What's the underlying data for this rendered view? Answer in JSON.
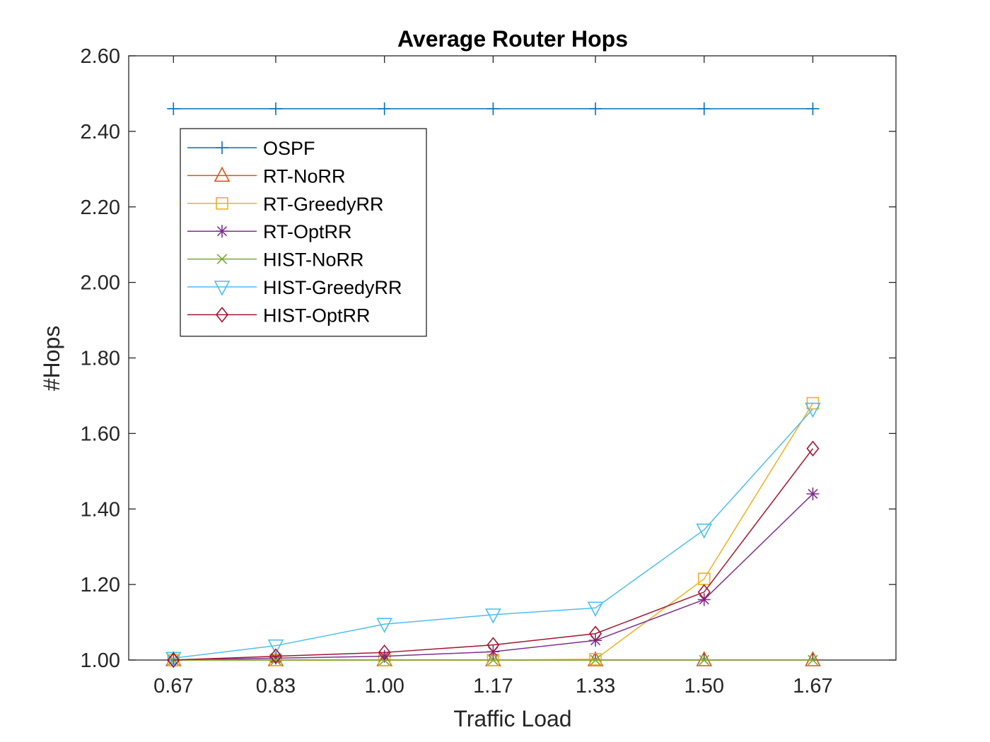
{
  "chart_data": {
    "type": "line",
    "title": "Average Router Hops",
    "xlabel": "Traffic Load",
    "ylabel": "#Hops",
    "x": [
      0.67,
      0.83,
      1.0,
      1.17,
      1.33,
      1.5,
      1.67
    ],
    "x_tick_labels": [
      "0.67",
      "0.83",
      "1.00",
      "1.17",
      "1.33",
      "1.50",
      "1.67"
    ],
    "xlim": [
      0.6,
      1.8
    ],
    "ylim": [
      1.0,
      2.6
    ],
    "y_ticks": [
      1.0,
      1.2,
      1.4,
      1.6,
      1.8,
      2.0,
      2.2,
      2.4,
      2.6
    ],
    "y_tick_labels": [
      "1.00",
      "1.20",
      "1.40",
      "1.60",
      "1.80",
      "2.00",
      "2.20",
      "2.40",
      "2.60"
    ],
    "grid": false,
    "legend_position": "top-left",
    "series": [
      {
        "name": "OSPF",
        "color": "#0072BD",
        "marker": "plus",
        "values": [
          2.46,
          2.46,
          2.46,
          2.46,
          2.46,
          2.46,
          2.46
        ]
      },
      {
        "name": "RT-NoRR",
        "color": "#D95319",
        "marker": "triangle-up",
        "values": [
          1.0,
          1.0,
          1.0,
          1.0,
          1.0,
          1.0,
          1.0
        ]
      },
      {
        "name": "RT-GreedyRR",
        "color": "#EDB120",
        "marker": "square",
        "values": [
          1.0,
          1.0,
          1.0,
          1.0,
          1.002,
          1.215,
          1.68
        ]
      },
      {
        "name": "RT-OptRR",
        "color": "#7E2F8E",
        "marker": "asterisk",
        "values": [
          1.0,
          1.005,
          1.01,
          1.022,
          1.052,
          1.16,
          1.44
        ]
      },
      {
        "name": "HIST-NoRR",
        "color": "#77AC30",
        "marker": "x",
        "values": [
          1.0,
          1.0,
          1.0,
          1.0,
          1.0,
          1.0,
          1.0
        ]
      },
      {
        "name": "HIST-GreedyRR",
        "color": "#4DBEEE",
        "marker": "triangle-down",
        "values": [
          1.005,
          1.038,
          1.095,
          1.12,
          1.138,
          1.345,
          1.665
        ]
      },
      {
        "name": "HIST-OptRR",
        "color": "#A2142F",
        "marker": "diamond",
        "values": [
          1.0,
          1.01,
          1.02,
          1.04,
          1.07,
          1.18,
          1.56
        ]
      }
    ]
  }
}
